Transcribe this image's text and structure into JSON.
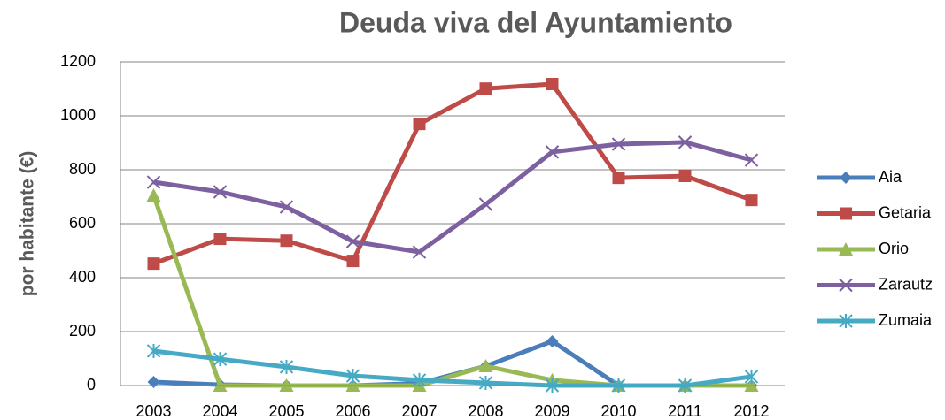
{
  "chart_data": {
    "type": "line",
    "title": "Deuda viva del Ayuntamiento",
    "y_label": "por habitante (€)",
    "categories": [
      "2003",
      "2004",
      "2005",
      "2006",
      "2007",
      "2008",
      "2009",
      "2010",
      "2011",
      "2012"
    ],
    "series": [
      {
        "name": "Aia",
        "color": "#4a7ebb",
        "marker": "diamond",
        "values": [
          13,
          3,
          0,
          0,
          8,
          72,
          164,
          0,
          0,
          0
        ]
      },
      {
        "name": "Getaria",
        "color": "#be4b48",
        "marker": "square",
        "values": [
          452,
          544,
          537,
          462,
          970,
          1101,
          1118,
          770,
          777,
          688
        ]
      },
      {
        "name": "Orio",
        "color": "#98b954",
        "marker": "triangle",
        "values": [
          705,
          0,
          0,
          0,
          0,
          72,
          20,
          0,
          0,
          0
        ]
      },
      {
        "name": "Zarautz",
        "color": "#7d60a0",
        "marker": "x",
        "values": [
          754,
          718,
          662,
          534,
          495,
          672,
          866,
          895,
          902,
          836
        ]
      },
      {
        "name": "Zumaia",
        "color": "#46aac5",
        "marker": "star",
        "values": [
          128,
          98,
          69,
          36,
          20,
          10,
          0,
          0,
          0,
          33
        ]
      }
    ],
    "ylim": [
      0,
      1200
    ],
    "yticks": [
      0,
      200,
      400,
      600,
      800,
      1000,
      1200
    ],
    "grid": true,
    "legend": "right"
  }
}
